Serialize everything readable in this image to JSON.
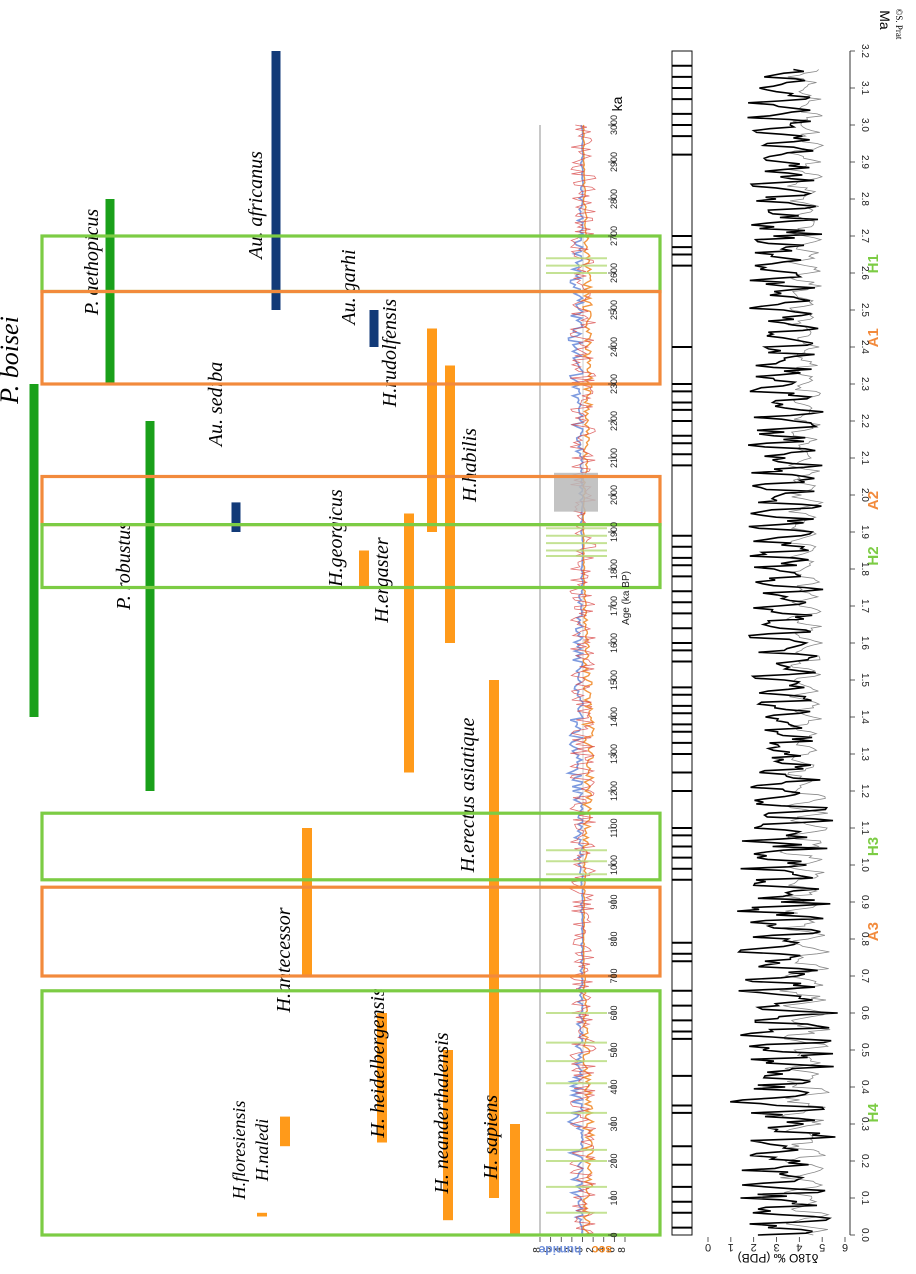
{
  "chart_data": {
    "type": "range-timeline",
    "orientation": "rotated-90",
    "time_axis_ka": {
      "label": "Age (ka BP)",
      "unit": "ka",
      "min": 0,
      "max": 3000,
      "ticks": [
        "0",
        "100",
        "200",
        "300",
        "400",
        "500",
        "600",
        "700",
        "800",
        "900",
        "1000",
        "1100",
        "1200",
        "1300",
        "1400",
        "1500",
        "1600",
        "1700",
        "1800",
        "1900",
        "2000",
        "2100",
        "2200",
        "2300",
        "2400",
        "2500",
        "2600",
        "2700",
        "2800",
        "2900",
        "3000"
      ]
    },
    "time_axis_ma": {
      "unit": "Ma",
      "ticks": [
        "0.0",
        "0.1",
        "0.2",
        "0.3",
        "0.4",
        "0.5",
        "0.6",
        "0.7",
        "0.8",
        "0.9",
        "1.0",
        "1.1",
        "1.2",
        "1.3",
        "1.4",
        "1.5",
        "1.6",
        "1.7",
        "1.8",
        "1.9",
        "2.0",
        "2.1",
        "2.2",
        "2.3",
        "2.4",
        "2.5",
        "2.6",
        "2.7",
        "2.8",
        "2.9",
        "3.0",
        "3.1",
        "3.2"
      ]
    },
    "humidity_axis": {
      "label_dry": "sec",
      "label_humid": "humide",
      "ticks": [
        "8",
        "6",
        "4",
        "2",
        "0",
        "2",
        "4",
        "6",
        "8"
      ]
    },
    "d18o_axis": {
      "label": "δ18O ‰ (PDB)",
      "ticks": [
        "0",
        "1",
        "2",
        "3",
        "4",
        "5",
        "6"
      ]
    },
    "species": [
      {
        "name": "P. boisei",
        "genus": "Paranthropus",
        "start_ma": 2.3,
        "end_ma": 1.4
      },
      {
        "name": "P. robustus",
        "genus": "Paranthropus",
        "start_ma": 2.2,
        "end_ma": 1.2
      },
      {
        "name": "P. aethopicus",
        "genus": "Paranthropus",
        "start_ma": 2.8,
        "end_ma": 2.3
      },
      {
        "name": "Au. africanus",
        "genus": "Australopithecus",
        "start_ma": 3.2,
        "end_ma": 2.5
      },
      {
        "name": "Au. garhi",
        "genus": "Australopithecus",
        "start_ma": 2.5,
        "end_ma": 2.4
      },
      {
        "name": "Au. sediba",
        "genus": "Australopithecus",
        "start_ma": 1.98,
        "end_ma": 1.9
      },
      {
        "name": "H.rudolfensis",
        "genus": "Homo",
        "start_ma": 2.45,
        "end_ma": 1.9
      },
      {
        "name": "H.habilis",
        "genus": "Homo",
        "start_ma": 2.35,
        "end_ma": 1.6
      },
      {
        "name": "H.ergaster",
        "genus": "Homo",
        "start_ma": 1.95,
        "end_ma": 1.25
      },
      {
        "name": "H.georgicus",
        "genus": "Homo",
        "start_ma": 1.85,
        "end_ma": 1.75
      },
      {
        "name": "H.erectus asiatique",
        "genus": "Homo",
        "start_ma": 1.5,
        "end_ma": 0.1
      },
      {
        "name": "H.antecessor",
        "genus": "Homo",
        "start_ma": 1.1,
        "end_ma": 0.7
      },
      {
        "name": "H. heidelbergensis",
        "genus": "Homo",
        "start_ma": 0.6,
        "end_ma": 0.25
      },
      {
        "name": "H. neanderthalensis",
        "genus": "Homo",
        "start_ma": 0.5,
        "end_ma": 0.04
      },
      {
        "name": "H. sapiens",
        "genus": "Homo",
        "start_ma": 0.3,
        "end_ma": 0.0
      },
      {
        "name": "H.floresiensis",
        "genus": "Homo",
        "start_ma": 0.06,
        "end_ma": 0.05
      },
      {
        "name": "H.naledi",
        "genus": "Homo",
        "start_ma": 0.32,
        "end_ma": 0.24
      }
    ],
    "periods": [
      {
        "label": "H1",
        "kind": "humid",
        "start_ma": 2.7,
        "end_ma": 2.55
      },
      {
        "label": "A1",
        "kind": "arid",
        "start_ma": 2.55,
        "end_ma": 2.3
      },
      {
        "label": "A2",
        "kind": "arid",
        "start_ma": 2.05,
        "end_ma": 1.92
      },
      {
        "label": "H2",
        "kind": "humid",
        "start_ma": 1.92,
        "end_ma": 1.75
      },
      {
        "label": "H3",
        "kind": "humid",
        "start_ma": 1.14,
        "end_ma": 0.96
      },
      {
        "label": "A3",
        "kind": "arid",
        "start_ma": 0.94,
        "end_ma": 0.7
      },
      {
        "label": "H4",
        "kind": "humid",
        "start_ma": 0.66,
        "end_ma": 0.0
      }
    ],
    "colors": {
      "Paranthropus": "#1aa01a",
      "Australopithecus": "#123a78",
      "Homo": "#ff9a1a",
      "humid": "#7ccc44",
      "arid": "#f28a3c",
      "humid_curve": "#6f8fdc",
      "dry_curve": "#f0841e"
    },
    "credit": "©S. Prat"
  }
}
